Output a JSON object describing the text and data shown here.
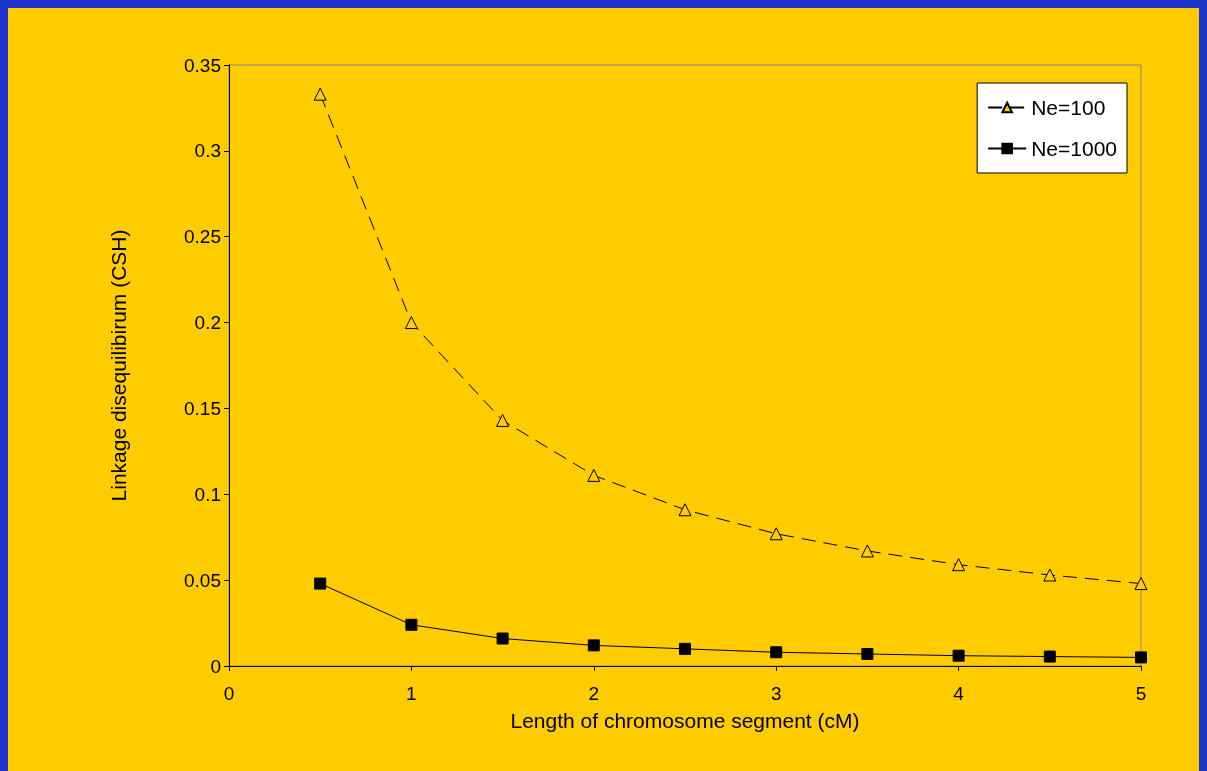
{
  "chart_data": {
    "type": "line",
    "xlabel": "Length of chromosome segment (cM)",
    "ylabel": "Linkage disequilibirum (CSH)",
    "x": [
      0.5,
      1,
      1.5,
      2,
      2.5,
      3,
      3.5,
      4,
      4.5,
      5
    ],
    "series": [
      {
        "name": "Ne=100",
        "color": "#000000",
        "marker": "triangle",
        "line_style": "dashed",
        "values": [
          0.333,
          0.2,
          0.143,
          0.111,
          0.091,
          0.077,
          0.067,
          0.059,
          0.053,
          0.048
        ]
      },
      {
        "name": "Ne=1000",
        "color": "#000000",
        "marker": "square",
        "line_style": "solid",
        "values": [
          0.048,
          0.024,
          0.016,
          0.012,
          0.01,
          0.008,
          0.007,
          0.006,
          0.0055,
          0.005
        ]
      }
    ],
    "xlim": [
      0,
      5
    ],
    "xticks": [
      0,
      1,
      2,
      3,
      4,
      5
    ],
    "ylim": [
      0,
      0.35
    ],
    "yticks": [
      0,
      0.05,
      0.1,
      0.15,
      0.2,
      0.25,
      0.3,
      0.35
    ],
    "grid": false,
    "legend": "top right"
  }
}
